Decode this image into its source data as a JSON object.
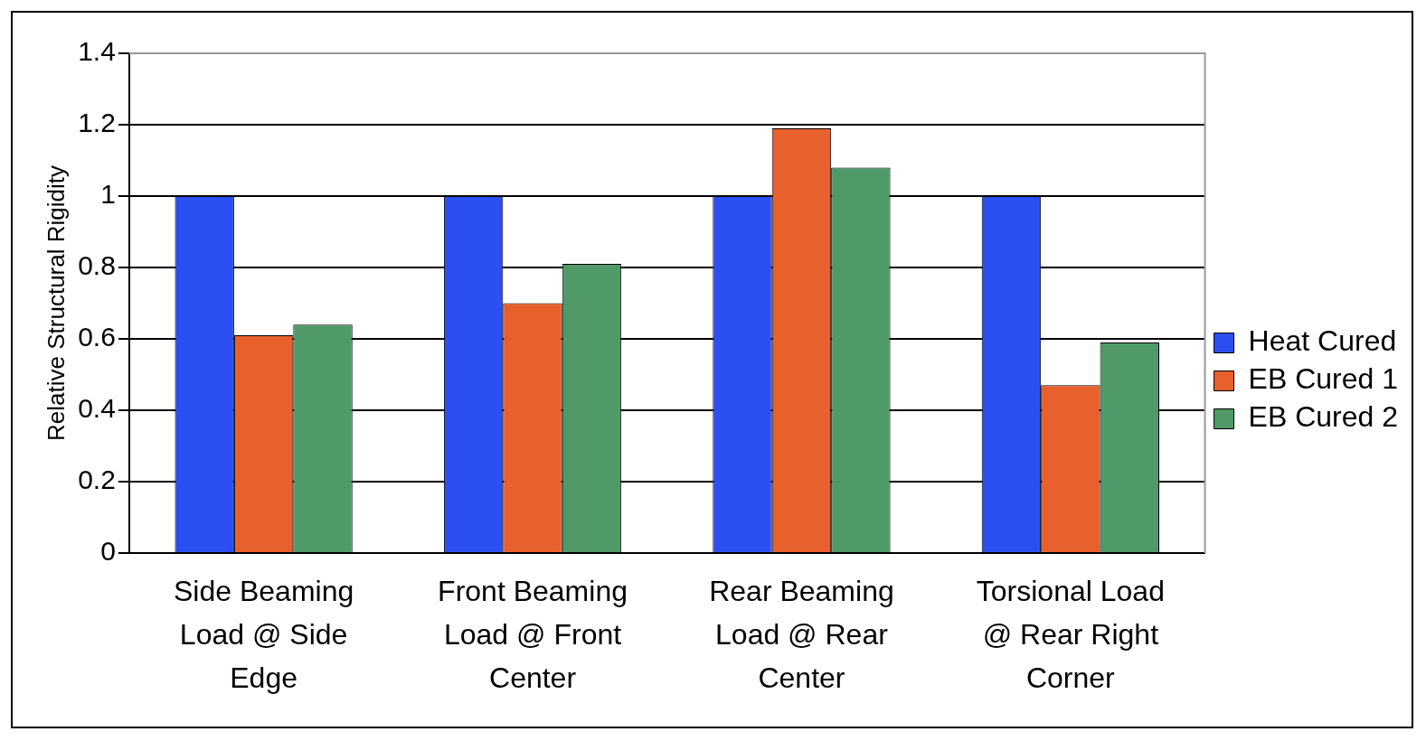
{
  "chart_data": {
    "type": "bar",
    "ylabel": "Relative Structural Rigidity",
    "categories": [
      "Side Beaming Load @ Side Edge",
      "Front Beaming Load @ Front Center",
      "Rear Beaming Load @ Rear Center",
      "Torsional Load @ Rear Right Corner"
    ],
    "series": [
      {
        "name": "Heat Cured",
        "color": "#2b4ff0",
        "values": [
          1,
          1,
          1,
          1
        ]
      },
      {
        "name": "EB Cured 1",
        "color": "#e8602c",
        "values": [
          0.61,
          0.7,
          1.19,
          0.47
        ]
      },
      {
        "name": "EB Cured 2",
        "color": "#4f9a68",
        "values": [
          0.64,
          0.81,
          1.08,
          0.59
        ]
      }
    ],
    "ylim": [
      0,
      1.4
    ],
    "yticks": [
      0,
      0.2,
      0.4,
      0.6,
      0.8,
      1,
      1.2,
      1.4
    ],
    "grid": "y",
    "legend": "right"
  }
}
